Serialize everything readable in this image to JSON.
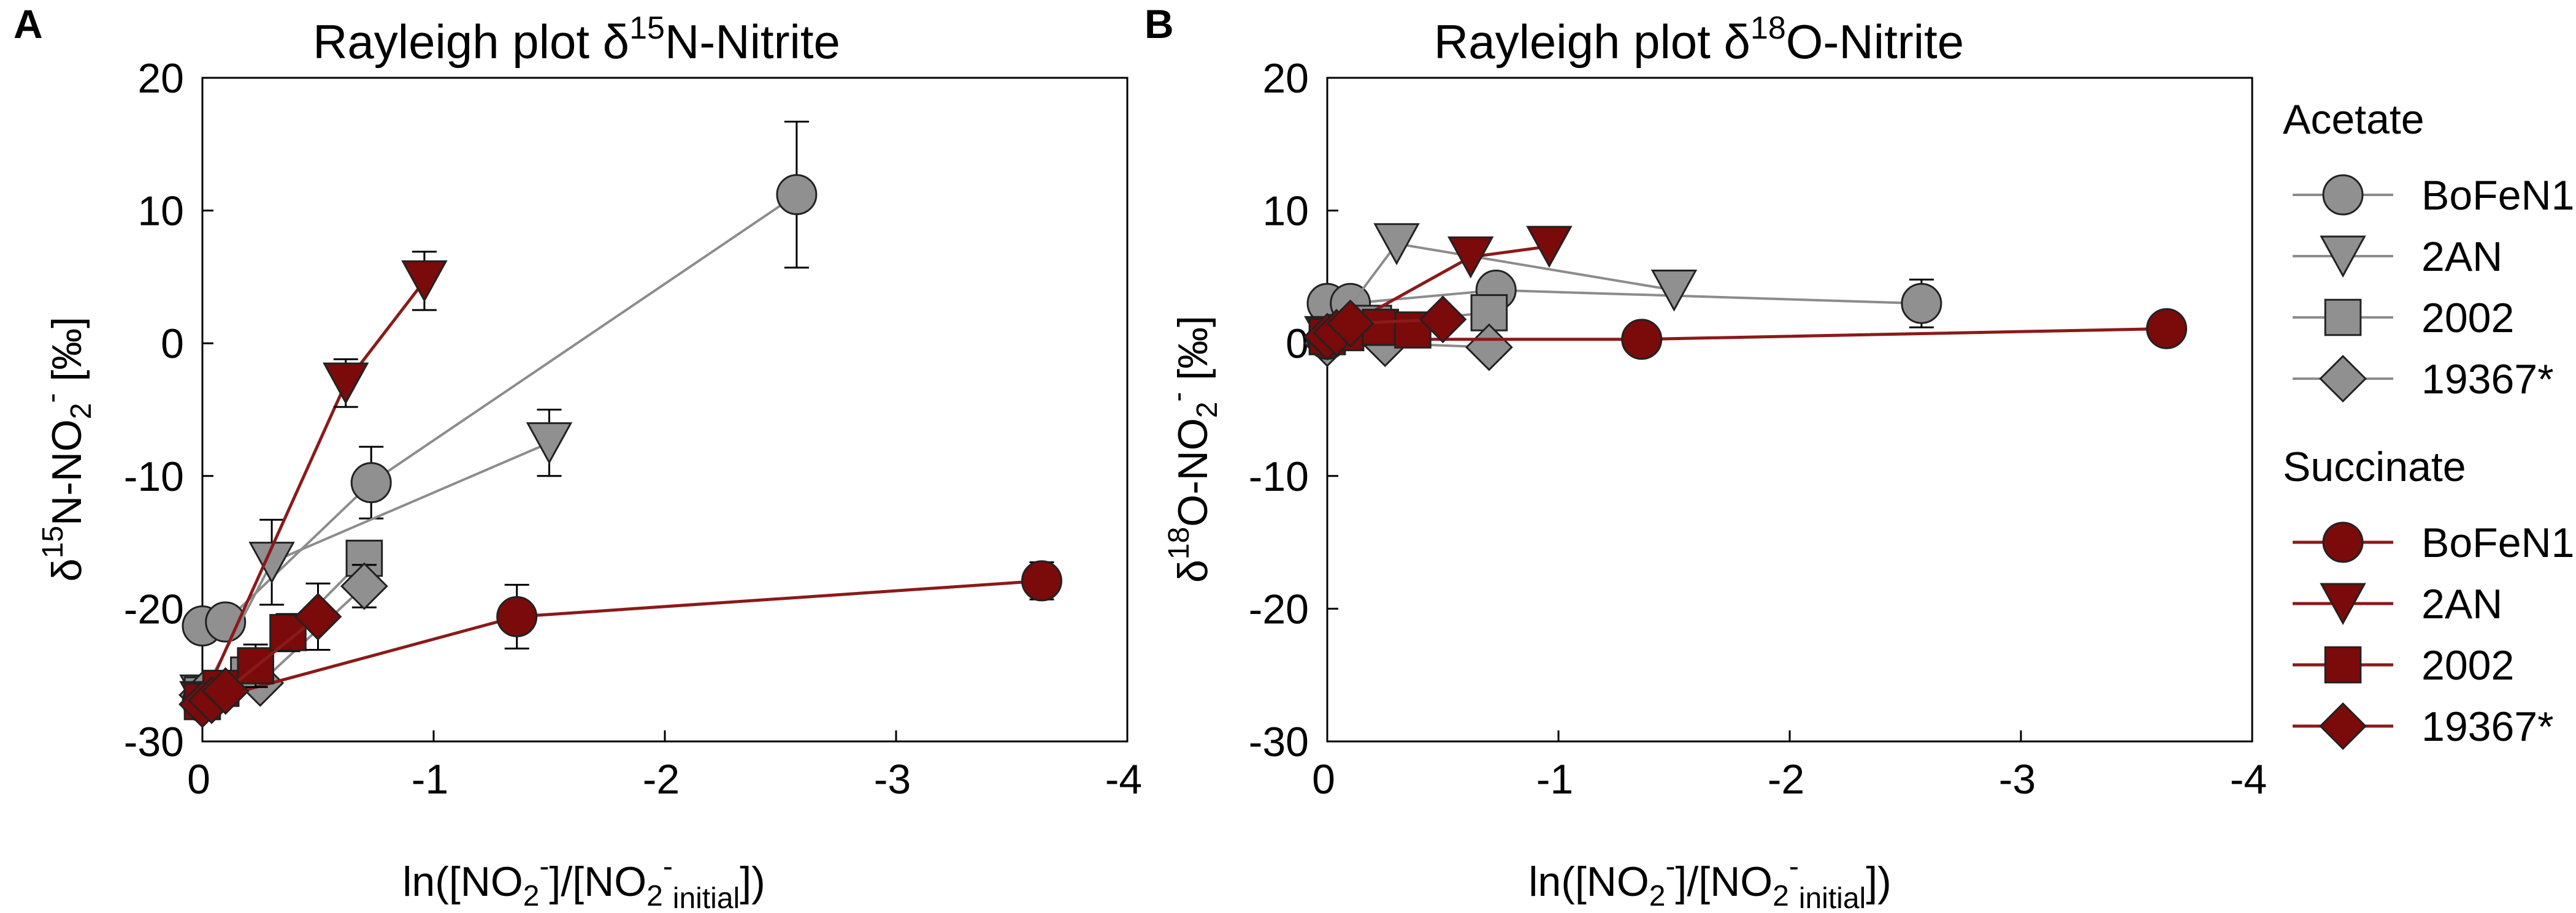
{
  "figure": {
    "panel_labels": [
      "A",
      "B"
    ],
    "legend": {
      "acetate_title": "Acetate",
      "succinate_title": "Succinate",
      "entries": [
        "BoFeN1",
        "2AN",
        "2002",
        "19367*"
      ]
    },
    "colors": {
      "acetate_fill": "#909090",
      "acetate_line": "#8c8c8c",
      "succinate_fill": "#7b0a0a",
      "succinate_line": "#8b1a1a",
      "outline": "#222222"
    }
  },
  "chart_data": [
    {
      "panel": "A",
      "type": "scatter",
      "title_main": "Rayleigh plot δ",
      "title_sup": "15",
      "title_end": "N-Nitrite",
      "xlabel": {
        "pre": "ln([NO",
        "s1": "2",
        "sup1": "-",
        "mid": "]/[NO",
        "s2": "2",
        "sup2": "-",
        "sub_init": "initial",
        "post": "])"
      },
      "ylabel": {
        "pre": "δ",
        "sup": "15",
        "mid": "N-NO",
        "sub": "2",
        "sup2": "-",
        "post": " [‰]"
      },
      "xlim": [
        0,
        -4
      ],
      "ylim": [
        -30,
        20
      ],
      "xticks": [
        0,
        -1,
        -2,
        -3,
        -4
      ],
      "yticks": [
        20,
        10,
        0,
        -10,
        -20,
        -30
      ],
      "xtick_labels": [
        "0",
        "-1",
        "-2",
        "-3",
        "-4"
      ],
      "ytick_labels": [
        "20",
        "10",
        "0",
        "-10",
        "-20",
        "-30"
      ],
      "series": [
        {
          "name": "BoFeN1",
          "group": "Acetate",
          "marker": "circle",
          "x": [
            0,
            -0.1,
            -0.73,
            -2.57
          ],
          "y": [
            -21.3,
            -21,
            -10.5,
            11.2
          ],
          "err": [
            1.2,
            1.2,
            2.7,
            5.5
          ]
        },
        {
          "name": "2AN",
          "group": "Acetate",
          "marker": "triangle-down",
          "x": [
            0,
            -0.3,
            -1.5
          ],
          "y": [
            -26.5,
            -16.5,
            -7.5
          ],
          "err": [
            0,
            3.2,
            2.5
          ]
        },
        {
          "name": "2002",
          "group": "Acetate",
          "marker": "square",
          "x": [
            0,
            -0.2,
            -0.7
          ],
          "y": [
            -26.5,
            -25,
            -16.2
          ],
          "err": [
            0,
            0,
            0
          ]
        },
        {
          "name": "19367*",
          "group": "Acetate",
          "marker": "diamond",
          "x": [
            0,
            -0.25,
            -0.7
          ],
          "y": [
            -26.5,
            -25.6,
            -18.3
          ],
          "err": [
            0,
            0,
            1.6
          ]
        },
        {
          "name": "BoFeN1",
          "group": "Succinate",
          "marker": "circle",
          "x": [
            0,
            -1.36,
            -3.63
          ],
          "y": [
            -27,
            -20.6,
            -17.9
          ],
          "err": [
            0,
            2.4,
            1.4
          ]
        },
        {
          "name": "2AN",
          "group": "Succinate",
          "marker": "triangle-down",
          "x": [
            0,
            -0.62,
            -0.96
          ],
          "y": [
            -27,
            -3,
            4.7
          ],
          "err": [
            0,
            1.8,
            2.2
          ]
        },
        {
          "name": "2002",
          "group": "Succinate",
          "marker": "square",
          "x": [
            0,
            -0.08,
            -0.23,
            -0.37
          ],
          "y": [
            -27,
            -26,
            -24.3,
            -21.8
          ],
          "err": [
            0,
            0,
            1.6,
            1.4
          ]
        },
        {
          "name": "19367*",
          "group": "Succinate",
          "marker": "diamond",
          "x": [
            0,
            -0.04,
            -0.1,
            -0.5
          ],
          "y": [
            -27.2,
            -26.9,
            -26.2,
            -20.6
          ],
          "err": [
            0,
            0,
            0,
            2.5
          ]
        }
      ]
    },
    {
      "panel": "B",
      "type": "scatter",
      "title_main": "Rayleigh plot δ",
      "title_sup": "18",
      "title_end": "O-Nitrite",
      "xlabel": {
        "pre": "ln([NO",
        "s1": "2",
        "sup1": "-",
        "mid": "]/[NO",
        "s2": "2",
        "sup2": "-",
        "sub_init": "initial",
        "post": "])"
      },
      "ylabel": {
        "pre": "δ",
        "sup": "18",
        "mid": "O-NO",
        "sub": "2",
        "sup2": "-",
        "post": " [‰]"
      },
      "xlim": [
        0,
        -4
      ],
      "ylim": [
        -30,
        20
      ],
      "xticks": [
        0,
        -1,
        -2,
        -3,
        -4
      ],
      "yticks": [
        20,
        10,
        0,
        -10,
        -20,
        -30
      ],
      "xtick_labels": [
        "0",
        "-1",
        "-2",
        "-3",
        "-4"
      ],
      "ytick_labels": [
        "20",
        "10",
        "0",
        "-10",
        "-20",
        "-30"
      ],
      "series": [
        {
          "name": "BoFeN1",
          "group": "Acetate",
          "marker": "circle",
          "x": [
            0,
            -0.1,
            -0.73,
            -2.57
          ],
          "y": [
            3,
            3,
            4,
            3
          ],
          "err": [
            0,
            0,
            0,
            1.8
          ]
        },
        {
          "name": "2AN",
          "group": "Acetate",
          "marker": "triangle-down",
          "x": [
            0,
            -0.3,
            -1.5
          ],
          "y": [
            0.5,
            7.5,
            4
          ],
          "err": [
            0,
            0,
            0
          ]
        },
        {
          "name": "2002",
          "group": "Acetate",
          "marker": "square",
          "x": [
            0,
            -0.2,
            -0.7
          ],
          "y": [
            0.5,
            1.5,
            2.3
          ],
          "err": [
            0,
            0,
            0
          ]
        },
        {
          "name": "19367*",
          "group": "Acetate",
          "marker": "diamond",
          "x": [
            0,
            -0.25,
            -0.7
          ],
          "y": [
            0,
            0,
            -0.3
          ],
          "err": [
            0,
            0,
            0
          ]
        },
        {
          "name": "BoFeN1",
          "group": "Succinate",
          "marker": "circle",
          "x": [
            0,
            -1.36,
            -3.63
          ],
          "y": [
            0.3,
            0.3,
            1.1
          ],
          "err": [
            0,
            0,
            0
          ]
        },
        {
          "name": "2AN",
          "group": "Succinate",
          "marker": "triangle-down",
          "x": [
            0,
            -0.62,
            -0.96
          ],
          "y": [
            0.5,
            6.5,
            7.3
          ],
          "err": [
            0,
            0,
            0
          ]
        },
        {
          "name": "2002",
          "group": "Succinate",
          "marker": "square",
          "x": [
            0,
            -0.08,
            -0.23,
            -0.37
          ],
          "y": [
            0.5,
            0.8,
            1.2,
            1
          ],
          "err": [
            0,
            0,
            0,
            0
          ]
        },
        {
          "name": "19367*",
          "group": "Succinate",
          "marker": "diamond",
          "x": [
            0,
            -0.04,
            -0.1,
            -0.5
          ],
          "y": [
            0.5,
            0.8,
            1.5,
            1.8
          ],
          "err": [
            0,
            0,
            0,
            0
          ]
        }
      ]
    }
  ]
}
